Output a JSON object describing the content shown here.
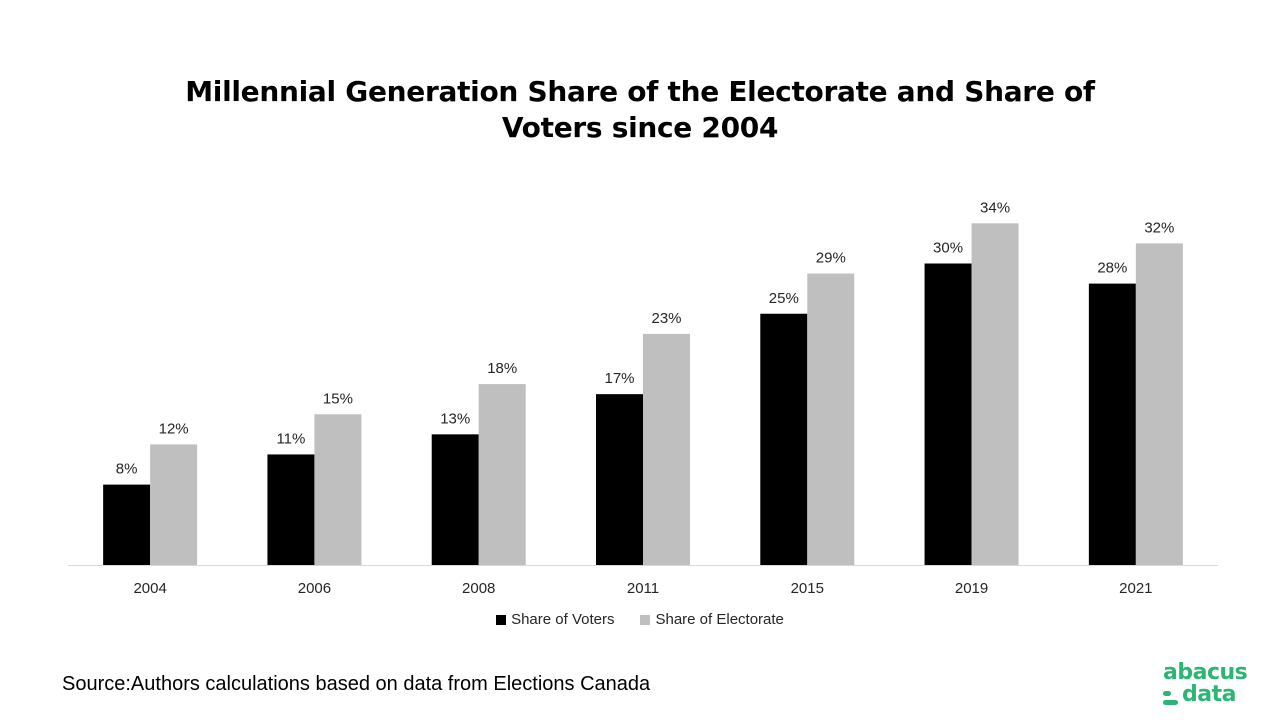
{
  "chart_data": {
    "type": "bar",
    "title": "Millennial Generation Share of the Electorate and Share of Voters since 2004",
    "title_lines": [
      "Millennial Generation Share of the Electorate and Share of",
      "Voters since 2004"
    ],
    "categories": [
      "2004",
      "2006",
      "2008",
      "2011",
      "2015",
      "2019",
      "2021"
    ],
    "series": [
      {
        "name": "Share of Voters",
        "color": "#000000",
        "values": [
          8,
          11,
          13,
          17,
          25,
          30,
          28
        ],
        "labels": [
          "8%",
          "11%",
          "13%",
          "17%",
          "25%",
          "30%",
          "28%"
        ]
      },
      {
        "name": "Share of Electorate",
        "color": "#bfbfbf",
        "values": [
          12,
          15,
          18,
          23,
          29,
          34,
          32
        ],
        "labels": [
          "12%",
          "15%",
          "18%",
          "23%",
          "29%",
          "34%",
          "32%"
        ]
      }
    ],
    "ylim": [
      0,
      34
    ],
    "grid": false,
    "legend_position": "bottom"
  },
  "source": "Source:Authors calculations based on data from Elections Canada",
  "logo": {
    "top": "abacus",
    "bottom": "data",
    "color": "#2bb673"
  }
}
